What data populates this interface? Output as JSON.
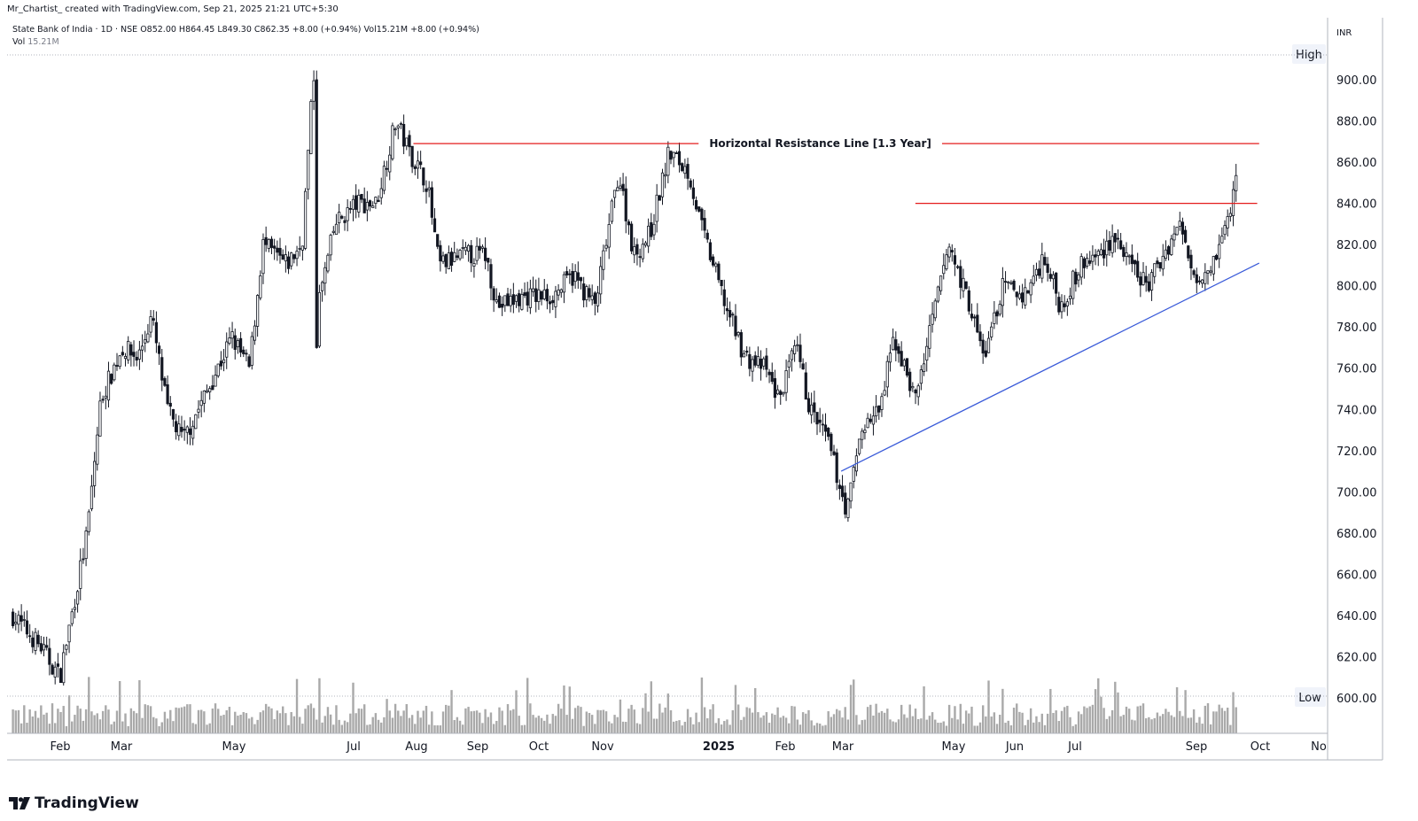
{
  "header": {
    "credit": "Mr_Chartist_ created with TradingView.com, Sep 21, 2025 21:21 UTC+5:30",
    "symbol_line": "State Bank of India · 1D · NSE",
    "ohlc": "O852.00 H864.45 L849.30 C862.35 +8.00 (+0.94%)",
    "vol_inline": "Vol15.21M +8.00 (+0.94%)",
    "vol_label": "Vol",
    "vol_value": "15.21M"
  },
  "axis": {
    "currency": "INR",
    "high_label": "High",
    "low_label": "Low"
  },
  "brand": {
    "name": "TradingView"
  },
  "colors": {
    "candle": "#131722",
    "volume": "#a9a9a9",
    "resistance": "#e41c1c",
    "trendline": "#3a5bd9",
    "grid": "#e0e3eb"
  },
  "chart_data": {
    "type": "candlestick",
    "ylim": [
      585,
      912
    ],
    "y_ticks": [
      600,
      620,
      640,
      660,
      680,
      700,
      720,
      740,
      760,
      780,
      800,
      820,
      840,
      860,
      880,
      900
    ],
    "y_tick_labels": [
      "600.00",
      "620.00",
      "640.00",
      "660.00",
      "680.00",
      "700.00",
      "720.00",
      "740.00",
      "760.00",
      "780.00",
      "800.00",
      "820.00",
      "840.00",
      "860.00",
      "880.00",
      "900.00"
    ],
    "x_labels": [
      "Feb",
      "Mar",
      "May",
      "Jul",
      "Aug",
      "Sep",
      "Oct",
      "Nov",
      "2025",
      "Feb",
      "Mar",
      "May",
      "Jun",
      "Jul",
      "Sep",
      "Oct",
      "No"
    ],
    "x_label_bold": [
      false,
      false,
      false,
      false,
      false,
      false,
      false,
      false,
      true,
      false,
      false,
      false,
      false,
      false,
      false,
      false,
      false
    ],
    "series_close": [
      {
        "date": "2024-01-01",
        "close": 640
      },
      {
        "date": "2024-01-15",
        "close": 625
      },
      {
        "date": "2024-01-25",
        "close": 610
      },
      {
        "date": "2024-02-01",
        "close": 645
      },
      {
        "date": "2024-02-08",
        "close": 680
      },
      {
        "date": "2024-02-15",
        "close": 745
      },
      {
        "date": "2024-02-26",
        "close": 770
      },
      {
        "date": "2024-03-05",
        "close": 765
      },
      {
        "date": "2024-03-12",
        "close": 785
      },
      {
        "date": "2024-03-20",
        "close": 740
      },
      {
        "date": "2024-03-28",
        "close": 725
      },
      {
        "date": "2024-04-10",
        "close": 750
      },
      {
        "date": "2024-04-22",
        "close": 775
      },
      {
        "date": "2024-05-01",
        "close": 760
      },
      {
        "date": "2024-05-08",
        "close": 820
      },
      {
        "date": "2024-05-20",
        "close": 810
      },
      {
        "date": "2024-05-28",
        "close": 820
      },
      {
        "date": "2024-06-03",
        "close": 905
      },
      {
        "date": "2024-06-04",
        "close": 760
      },
      {
        "date": "2024-06-05",
        "close": 790
      },
      {
        "date": "2024-06-14",
        "close": 830
      },
      {
        "date": "2024-06-25",
        "close": 840
      },
      {
        "date": "2024-07-05",
        "close": 840
      },
      {
        "date": "2024-07-15",
        "close": 880
      },
      {
        "date": "2024-07-22",
        "close": 865
      },
      {
        "date": "2024-07-31",
        "close": 850
      },
      {
        "date": "2024-08-06",
        "close": 810
      },
      {
        "date": "2024-08-20",
        "close": 815
      },
      {
        "date": "2024-08-30",
        "close": 815
      },
      {
        "date": "2024-09-05",
        "close": 790
      },
      {
        "date": "2024-09-20",
        "close": 795
      },
      {
        "date": "2024-10-03",
        "close": 795
      },
      {
        "date": "2024-10-14",
        "close": 805
      },
      {
        "date": "2024-10-25",
        "close": 790
      },
      {
        "date": "2024-11-06",
        "close": 855
      },
      {
        "date": "2024-11-14",
        "close": 815
      },
      {
        "date": "2024-11-22",
        "close": 825
      },
      {
        "date": "2024-12-02",
        "close": 865
      },
      {
        "date": "2024-12-12",
        "close": 855
      },
      {
        "date": "2024-12-18",
        "close": 830
      },
      {
        "date": "2024-12-31",
        "close": 790
      },
      {
        "date": "2025-01-10",
        "close": 765
      },
      {
        "date": "2025-01-20",
        "close": 760
      },
      {
        "date": "2025-01-27",
        "close": 745
      },
      {
        "date": "2025-02-05",
        "close": 770
      },
      {
        "date": "2025-02-12",
        "close": 740
      },
      {
        "date": "2025-02-21",
        "close": 725
      },
      {
        "date": "2025-03-03",
        "close": 690
      },
      {
        "date": "2025-03-10",
        "close": 730
      },
      {
        "date": "2025-03-20",
        "close": 740
      },
      {
        "date": "2025-03-27",
        "close": 775
      },
      {
        "date": "2025-04-07",
        "close": 745
      },
      {
        "date": "2025-04-15",
        "close": 780
      },
      {
        "date": "2025-04-24",
        "close": 820
      },
      {
        "date": "2025-05-05",
        "close": 790
      },
      {
        "date": "2025-05-12",
        "close": 765
      },
      {
        "date": "2025-05-22",
        "close": 800
      },
      {
        "date": "2025-06-02",
        "close": 795
      },
      {
        "date": "2025-06-12",
        "close": 815
      },
      {
        "date": "2025-06-20",
        "close": 790
      },
      {
        "date": "2025-07-01",
        "close": 810
      },
      {
        "date": "2025-07-10",
        "close": 815
      },
      {
        "date": "2025-07-18",
        "close": 825
      },
      {
        "date": "2025-07-25",
        "close": 810
      },
      {
        "date": "2025-08-04",
        "close": 800
      },
      {
        "date": "2025-08-12",
        "close": 815
      },
      {
        "date": "2025-08-20",
        "close": 830
      },
      {
        "date": "2025-08-28",
        "close": 805
      },
      {
        "date": "2025-09-05",
        "close": 810
      },
      {
        "date": "2025-09-12",
        "close": 825
      },
      {
        "date": "2025-09-17",
        "close": 845
      },
      {
        "date": "2025-09-19",
        "close": 862.35
      }
    ],
    "volume_max_approx": 60,
    "annotations": [
      {
        "type": "hline",
        "label": "Horizontal Resistance Line [1.3 Year]",
        "price": 869,
        "from": "2024-07-24",
        "to": "2025-09-30",
        "color": "#e41c1c"
      },
      {
        "type": "hline",
        "label": "",
        "price": 840,
        "from": "2025-04-07",
        "to": "2025-09-29",
        "color": "#e41c1c"
      },
      {
        "type": "trendline",
        "label": "",
        "from": {
          "date": "2025-02-28",
          "price": 710
        },
        "to": {
          "date": "2025-09-30",
          "price": 811
        },
        "color": "#3a5bd9"
      }
    ]
  }
}
